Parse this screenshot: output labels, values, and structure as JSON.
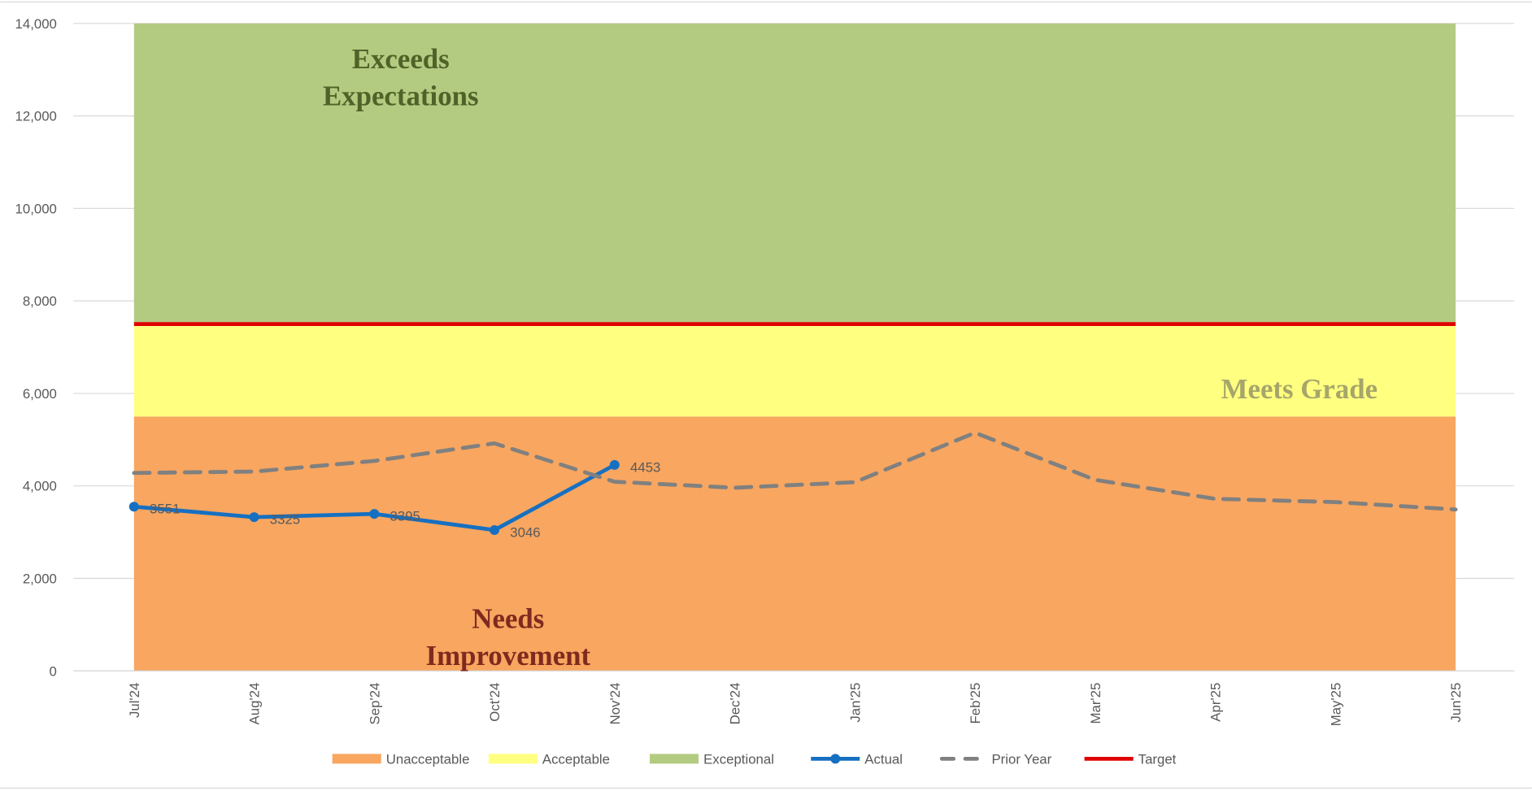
{
  "chart_data": {
    "type": "line",
    "categories": [
      "Jul'24",
      "Aug'24",
      "Sep'24",
      "Oct'24",
      "Nov'24",
      "Dec'24",
      "Jan'25",
      "Feb'25",
      "Mar'25",
      "Apr'25",
      "May'25",
      "Jun'25"
    ],
    "series": [
      {
        "name": "Unacceptable",
        "color": "#f8a660",
        "style": "area",
        "values": [
          5500,
          5500,
          5500,
          5500,
          5500,
          5500,
          5500,
          5500,
          5500,
          5500,
          5500,
          5500
        ]
      },
      {
        "name": "Acceptable",
        "color": "#ffff80",
        "style": "area",
        "values": [
          2000,
          2000,
          2000,
          2000,
          2000,
          2000,
          2000,
          2000,
          2000,
          2000,
          2000,
          2000
        ]
      },
      {
        "name": "Exceptional",
        "color": "#b3cb80",
        "style": "area",
        "values": [
          6500,
          6500,
          6500,
          6500,
          6500,
          6500,
          6500,
          6500,
          6500,
          6500,
          6500,
          6500
        ]
      },
      {
        "name": "Actual",
        "color": "#1670c2",
        "style": "line",
        "values": [
          3551,
          3325,
          3395,
          3046,
          4453,
          null,
          null,
          null,
          null,
          null,
          null,
          null
        ]
      },
      {
        "name": "Prior Year",
        "color": "#808080",
        "style": "dashed",
        "values": [
          4280,
          4310,
          4540,
          4920,
          4090,
          3960,
          4080,
          5150,
          4130,
          3720,
          3650,
          3490
        ]
      },
      {
        "name": "Target",
        "color": "#e00000",
        "style": "line",
        "values": [
          7500,
          7500,
          7500,
          7500,
          7500,
          7500,
          7500,
          7500,
          7500,
          7500,
          7500,
          7500
        ]
      }
    ],
    "ylim": [
      0,
      14000
    ],
    "yticks": [
      0,
      {
        "value": 2000,
        "label": "2,000"
      },
      {
        "value": 4000,
        "label": "4,000"
      },
      {
        "value": 6000,
        "label": "6,000"
      },
      {
        "value": 8000,
        "label": "8,000"
      },
      {
        "value": 10000,
        "label": "10,000"
      },
      {
        "value": 12000,
        "label": "12,000"
      },
      {
        "value": 14000,
        "label": "14,000"
      }
    ],
    "grid": true,
    "legend": "bottom",
    "annotations": [
      {
        "text": "Exceeds Expectations",
        "color": "#4f6228"
      },
      {
        "text": "Meets Grade",
        "color": "#a6a66a"
      },
      {
        "text": "Needs Improvement",
        "color": "#7f2a1f"
      }
    ]
  }
}
